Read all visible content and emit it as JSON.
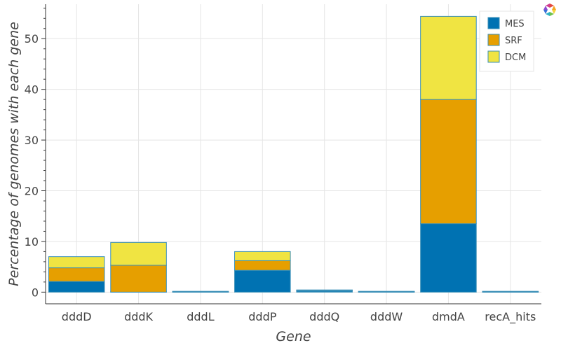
{
  "chart_data": {
    "type": "bar",
    "stacked": true,
    "categories": [
      "dddD",
      "dddK",
      "dddL",
      "dddP",
      "dddQ",
      "dddW",
      "dmdA",
      "recA_hits"
    ],
    "series": [
      {
        "name": "MES",
        "color": "#0072b2",
        "values": [
          2.1,
          0.0,
          0.0,
          4.3,
          0.2,
          0.0,
          13.5,
          0.0
        ]
      },
      {
        "name": "SRF",
        "color": "#e69f00",
        "values": [
          2.7,
          5.3,
          0.0,
          1.9,
          0.1,
          0.0,
          24.5,
          0.0
        ]
      },
      {
        "name": "DCM",
        "color": "#f0e442",
        "values": [
          2.2,
          4.5,
          0.0,
          1.8,
          0.1,
          0.0,
          16.4,
          0.0
        ]
      }
    ],
    "xlabel": "Gene",
    "ylabel": "Percentage of genomes with each gene",
    "ylim": [
      -2.3,
      56.8
    ],
    "yticks": [
      0,
      10,
      20,
      30,
      40,
      50
    ],
    "grid": true,
    "legend_position": "top-right",
    "bar_outline_color": "#3a8fb7"
  },
  "toolbar": {
    "logo_icon": "bokeh-logo-icon"
  }
}
